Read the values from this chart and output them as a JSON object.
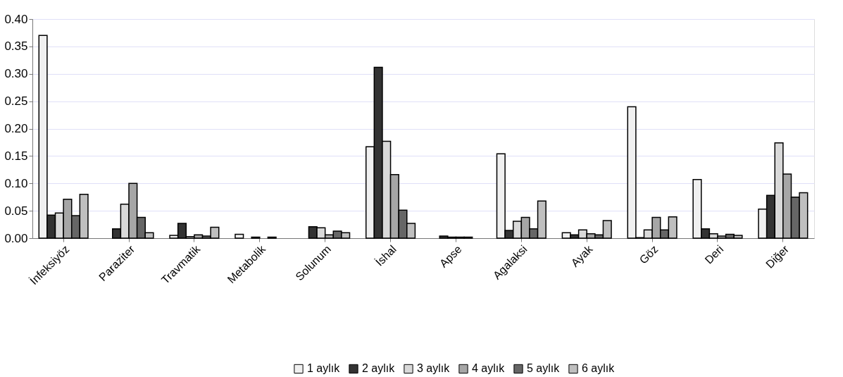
{
  "chart_data": {
    "type": "bar",
    "categories": [
      "İnfeksiyöz",
      "Paraziter",
      "Travmatik",
      "Metabolik",
      "Solunum",
      "İshal",
      "Apse",
      "Agalaksi",
      "Ayak",
      "Göz",
      "Deri",
      "Diğer"
    ],
    "series": [
      {
        "name": "1 aylık",
        "color": "#f0f0f0",
        "values": [
          0.37,
          null,
          0.005,
          0.007,
          null,
          0.167,
          null,
          0.154,
          0.01,
          0.24,
          0.107,
          0.053
        ]
      },
      {
        "name": "2 aylık",
        "color": "#333333",
        "values": [
          0.042,
          0.017,
          0.027,
          null,
          0.021,
          0.312,
          0.004,
          0.014,
          0.006,
          0.001,
          0.017,
          0.078
        ]
      },
      {
        "name": "3 aylık",
        "color": "#d9d9d9",
        "values": [
          0.046,
          0.062,
          0.003,
          0.002,
          0.019,
          0.177,
          0.002,
          0.031,
          0.015,
          0.015,
          0.008,
          0.174
        ]
      },
      {
        "name": "4 aylık",
        "color": "#a6a6a6",
        "values": [
          0.071,
          0.1,
          0.006,
          null,
          0.006,
          0.116,
          0.002,
          0.038,
          0.008,
          0.038,
          0.004,
          0.117
        ]
      },
      {
        "name": "5 aylık",
        "color": "#666666",
        "values": [
          0.041,
          0.038,
          0.004,
          0.002,
          0.013,
          0.051,
          0.002,
          0.017,
          0.006,
          0.015,
          0.007,
          0.075
        ]
      },
      {
        "name": "6 aylık",
        "color": "#bfbfbf",
        "values": [
          0.08,
          0.01,
          0.02,
          null,
          0.01,
          0.027,
          null,
          0.068,
          0.032,
          0.039,
          0.005,
          0.083
        ]
      }
    ],
    "ylim": [
      0,
      0.4
    ],
    "yticks": [
      {
        "value": 0,
        "label": "0.00"
      },
      {
        "value": 0.05,
        "label": "0.05"
      },
      {
        "value": 0.1,
        "label": "0.10"
      },
      {
        "value": 0.15,
        "label": "0.15"
      },
      {
        "value": 0.2,
        "label": "0.20"
      },
      {
        "value": 0.25,
        "label": "0.25"
      },
      {
        "value": 0.3,
        "label": "0.30"
      },
      {
        "value": 0.35,
        "label": "0.35"
      },
      {
        "value": 0.4,
        "label": "0.40"
      }
    ],
    "grid": "y",
    "legend": "bottom"
  }
}
